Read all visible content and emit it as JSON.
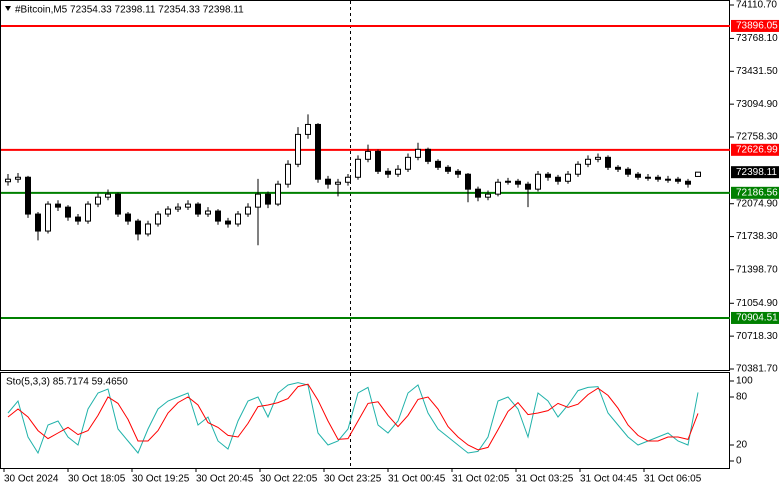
{
  "chart_data": {
    "type": "candlestick",
    "title": "#Bitcoin,M5  72354.33 72398.11 72354.33 72398.11",
    "ylim": [
      70381.7,
      74110.7
    ],
    "yticks": [
      {
        "value": 74110.7,
        "label": "74110.70"
      },
      {
        "value": 73768.1,
        "label": "73768.10"
      },
      {
        "value": 73431.5,
        "label": "73431.50"
      },
      {
        "value": 73094.9,
        "label": "73094.90"
      },
      {
        "value": 72758.3,
        "label": "72758.30"
      },
      {
        "value": 72074.9,
        "label": "72074.90"
      },
      {
        "value": 71738.3,
        "label": "71738.30"
      },
      {
        "value": 71398.7,
        "label": "71398.70"
      },
      {
        "value": 71054.9,
        "label": "71054.90"
      },
      {
        "value": 70718.3,
        "label": "70718.30"
      },
      {
        "value": 70381.7,
        "label": "70381.70"
      }
    ],
    "levels": [
      {
        "value": 73896.05,
        "color": "#ff0000"
      },
      {
        "value": 72626.99,
        "color": "#ff0000"
      },
      {
        "value": 72186.56,
        "color": "#008000"
      },
      {
        "value": 70904.51,
        "color": "#008000"
      }
    ],
    "time_labels": [
      "30 Oct 2024",
      "30 Oct 18:05",
      "30 Oct 19:25",
      "30 Oct 20:45",
      "30 Oct 22:05",
      "30 Oct 23:25",
      "31 Oct 00:45",
      "31 Oct 02:05",
      "31 Oct 03:25",
      "31 Oct 04:45",
      "31 Oct 06:05"
    ],
    "open": [
      72300,
      72326,
      72346,
      71969,
      71795,
      72071,
      72040,
      71938,
      71897,
      72071,
      72142,
      72173,
      71969,
      71897,
      71765,
      71867,
      71969,
      72020,
      72040,
      72071,
      71969,
      72000,
      71897,
      71867,
      71969,
      72040,
      72173,
      72071,
      72275,
      72479,
      72785,
      72887,
      72326,
      72275,
      72295,
      72346,
      72530,
      72611,
      72407,
      72377,
      72428,
      72550,
      72632,
      72509,
      72448,
      72407,
      72377,
      72224,
      72142,
      72173,
      72295,
      72305,
      72275,
      72224,
      72377,
      72346,
      72305,
      72377,
      72479,
      72530,
      72550,
      72448,
      72428,
      72377,
      72346,
      72346,
      72326,
      72326,
      72305,
      72354.33
    ],
    "high": [
      72380,
      72390,
      72360,
      71990,
      72100,
      72110,
      72060,
      71970,
      72100,
      72180,
      72220,
      72190,
      71990,
      71920,
      71900,
      72000,
      72050,
      72080,
      72110,
      72090,
      72040,
      72020,
      71930,
      72000,
      72080,
      72330,
      72200,
      72310,
      72520,
      72860,
      72990,
      72900,
      72360,
      72330,
      72380,
      72570,
      72680,
      72630,
      72440,
      72470,
      72590,
      72700,
      72650,
      72530,
      72470,
      72430,
      72390,
      72250,
      72210,
      72330,
      72340,
      72330,
      72300,
      72410,
      72400,
      72370,
      72410,
      72510,
      72570,
      72590,
      72570,
      72470,
      72450,
      72400,
      72380,
      72370,
      72360,
      72350,
      72330,
      72398.11
    ],
    "low": [
      72260,
      72290,
      71930,
      71700,
      71770,
      72000,
      71900,
      71860,
      71870,
      72040,
      72110,
      71940,
      71860,
      71700,
      71740,
      71840,
      71940,
      71990,
      72010,
      71940,
      71940,
      71860,
      71830,
      71840,
      71940,
      71650,
      72030,
      72050,
      72240,
      72450,
      72740,
      72290,
      72230,
      72150,
      72260,
      72320,
      72500,
      72380,
      72340,
      72350,
      72400,
      72520,
      72480,
      72420,
      72380,
      72340,
      72090,
      72100,
      72110,
      72150,
      72270,
      72240,
      72040,
      72200,
      72310,
      72270,
      72280,
      72350,
      72450,
      72500,
      72420,
      72400,
      72350,
      72320,
      72310,
      72300,
      72290,
      72280,
      72240,
      72354.33
    ],
    "close": [
      72326,
      72346,
      71969,
      71795,
      72071,
      72040,
      71938,
      71897,
      72071,
      72142,
      72173,
      71969,
      71897,
      71765,
      71867,
      71969,
      72020,
      72040,
      72071,
      71969,
      72000,
      71897,
      71867,
      71969,
      72040,
      72173,
      72071,
      72275,
      72479,
      72785,
      72887,
      72326,
      72275,
      72295,
      72346,
      72530,
      72611,
      72407,
      72377,
      72428,
      72550,
      72632,
      72509,
      72448,
      72407,
      72377,
      72224,
      72142,
      72173,
      72295,
      72305,
      72275,
      72224,
      72377,
      72346,
      72305,
      72377,
      72479,
      72530,
      72550,
      72448,
      72428,
      72377,
      72346,
      72346,
      72326,
      72326,
      72305,
      72275,
      72398.11
    ],
    "stochastic": {
      "label": "Sto(5,3,3) 85.7174 59.4650",
      "ylim": [
        0,
        100
      ],
      "yticks": [
        100,
        80,
        20,
        0
      ],
      "series": [
        {
          "color": "#20b2aa",
          "values": [
            60,
            75,
            30,
            10,
            45,
            50,
            30,
            20,
            65,
            85,
            90,
            40,
            25,
            10,
            40,
            65,
            75,
            80,
            85,
            45,
            55,
            25,
            15,
            50,
            75,
            80,
            55,
            85,
            95,
            98,
            95,
            35,
            20,
            25,
            40,
            85,
            92,
            45,
            35,
            50,
            85,
            95,
            60,
            40,
            30,
            20,
            10,
            12,
            30,
            75,
            80,
            65,
            30,
            85,
            75,
            55,
            70,
            88,
            92,
            93,
            60,
            45,
            30,
            20,
            25,
            30,
            35,
            25,
            20,
            85.7174
          ]
        },
        {
          "color": "#ff0000",
          "values": [
            55,
            65,
            55,
            38,
            28,
            35,
            42,
            33,
            38,
            57,
            80,
            72,
            52,
            25,
            25,
            38,
            60,
            73,
            80,
            70,
            48,
            42,
            32,
            30,
            47,
            68,
            70,
            73,
            78,
            93,
            96,
            76,
            50,
            27,
            28,
            50,
            72,
            74,
            57,
            43,
            57,
            77,
            80,
            65,
            43,
            30,
            20,
            14,
            17,
            39,
            62,
            73,
            58,
            60,
            63,
            72,
            67,
            71,
            83,
            91,
            82,
            66,
            45,
            32,
            25,
            25,
            30,
            30,
            27,
            59.465
          ]
        }
      ]
    }
  }
}
